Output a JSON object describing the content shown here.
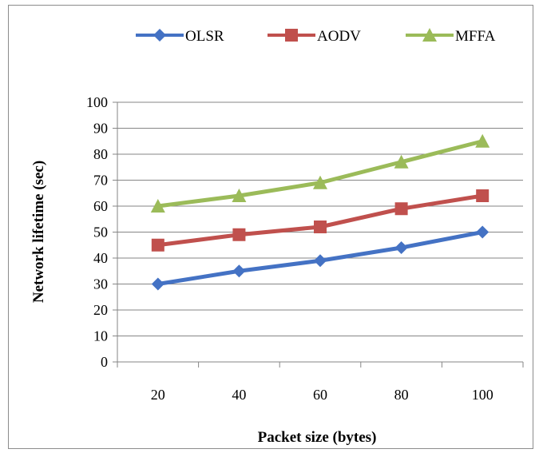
{
  "chart_data": {
    "type": "line",
    "title": "",
    "xlabel": "Packet size (bytes)",
    "ylabel": "Network lifetime (sec)",
    "categories": [
      "20",
      "40",
      "60",
      "80",
      "100"
    ],
    "ylim": [
      0,
      100
    ],
    "yticks": [
      "0",
      "10",
      "20",
      "30",
      "40",
      "50",
      "60",
      "70",
      "80",
      "90",
      "100"
    ],
    "grid": "horizontal",
    "legend_position": "top",
    "series": [
      {
        "name": "OLSR",
        "values": [
          30,
          35,
          39,
          44,
          50
        ],
        "color": "#4472c4",
        "marker": "diamond"
      },
      {
        "name": "AODV",
        "values": [
          45,
          49,
          52,
          59,
          64
        ],
        "color": "#c0504d",
        "marker": "square"
      },
      {
        "name": "MFFA",
        "values": [
          60,
          64,
          69,
          77,
          85
        ],
        "color": "#9bbb59",
        "marker": "triangle"
      }
    ]
  }
}
